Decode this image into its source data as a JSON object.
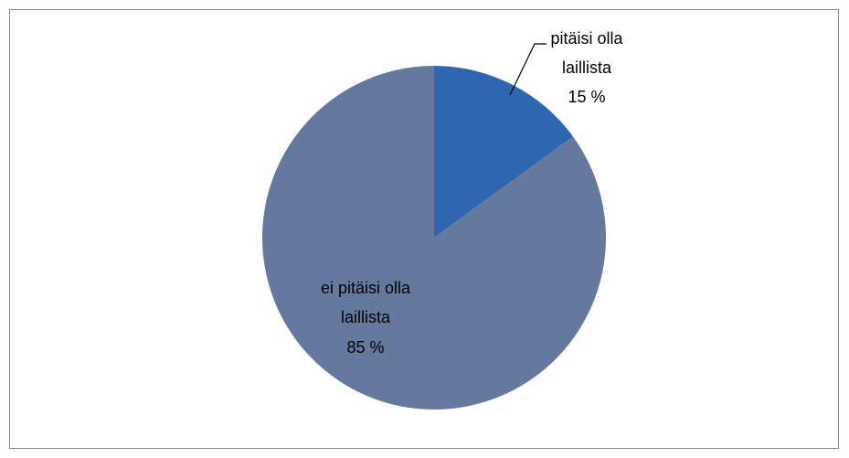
{
  "chart_data": {
    "type": "pie",
    "categories": [
      "pitäisi olla laillista",
      "ei pitäisi olla laillista"
    ],
    "values": [
      15,
      85
    ],
    "value_labels": [
      "15 %",
      "85 %"
    ],
    "colors": [
      "#2f66b0",
      "#65799f"
    ]
  }
}
